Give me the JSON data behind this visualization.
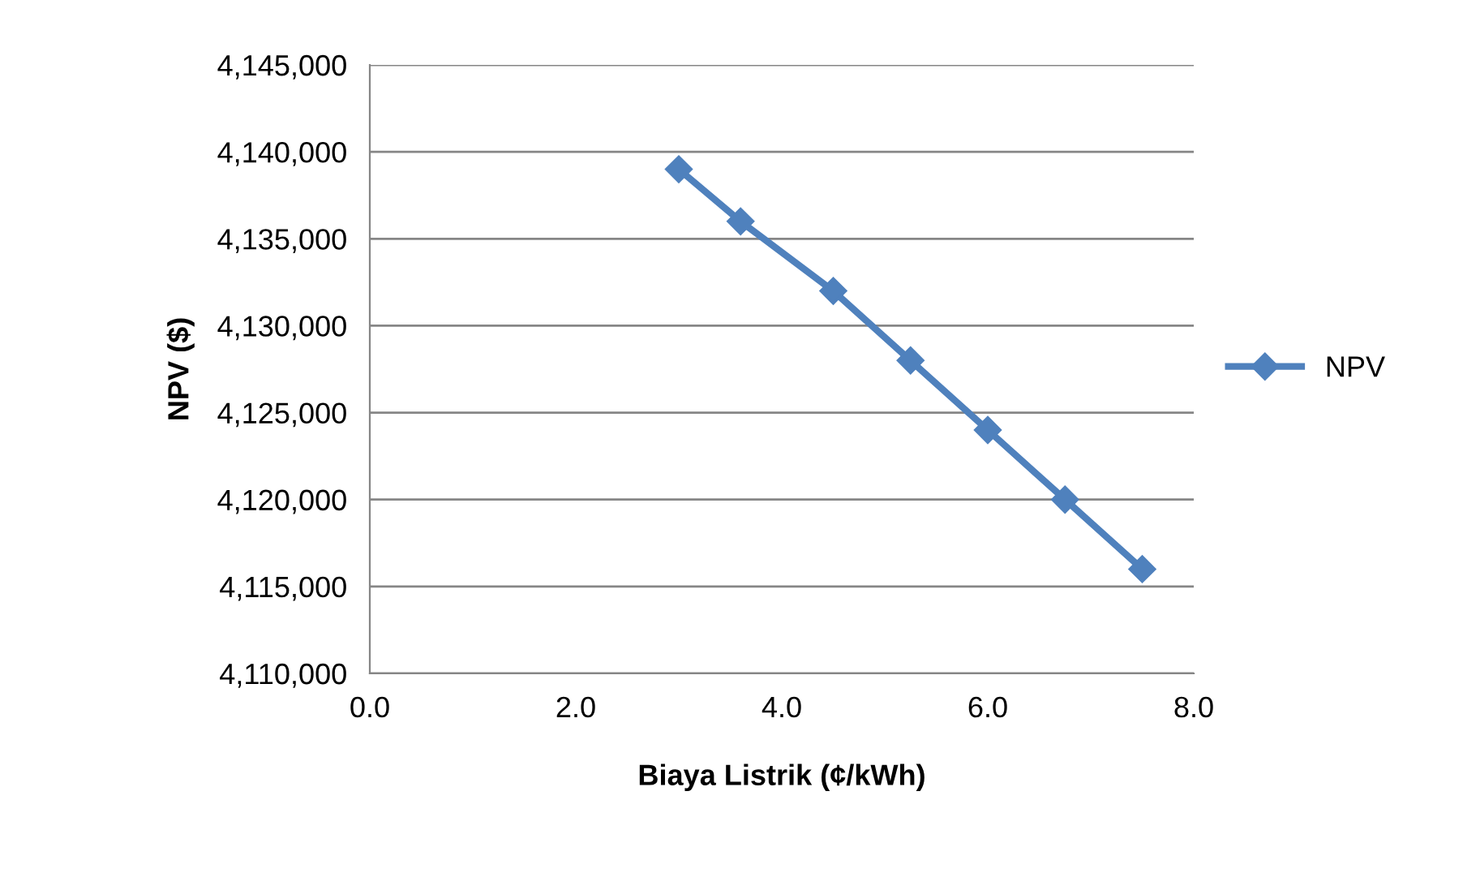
{
  "chart_data": {
    "type": "line",
    "xlabel": "Biaya Listrik (¢/kWh)",
    "ylabel": "NPV ($)",
    "x": [
      3.0,
      3.6,
      4.5,
      5.25,
      6.0,
      6.75,
      7.5
    ],
    "series": [
      {
        "name": "NPV",
        "color": "#4f81bd",
        "values": [
          4139000,
          4136000,
          4132000,
          4128000,
          4124000,
          4120000,
          4116000
        ]
      }
    ],
    "xlim": [
      0,
      8
    ],
    "xticks": [
      {
        "value": 0,
        "label": "0.0"
      },
      {
        "value": 2,
        "label": "2.0"
      },
      {
        "value": 4,
        "label": "4.0"
      },
      {
        "value": 6,
        "label": "6.0"
      },
      {
        "value": 8,
        "label": "8.0"
      }
    ],
    "ylim": [
      4110000,
      4145000
    ],
    "yticks": [
      {
        "value": 4110000,
        "label": "4,110,000"
      },
      {
        "value": 4115000,
        "label": "4,115,000"
      },
      {
        "value": 4120000,
        "label": "4,120,000"
      },
      {
        "value": 4125000,
        "label": "4,125,000"
      },
      {
        "value": 4130000,
        "label": "4,130,000"
      },
      {
        "value": 4135000,
        "label": "4,135,000"
      },
      {
        "value": 4140000,
        "label": "4,140,000"
      },
      {
        "value": 4145000,
        "label": "4,145,000"
      }
    ],
    "grid": "y",
    "legend": "right",
    "marker": "diamond",
    "line_style": "solid"
  }
}
